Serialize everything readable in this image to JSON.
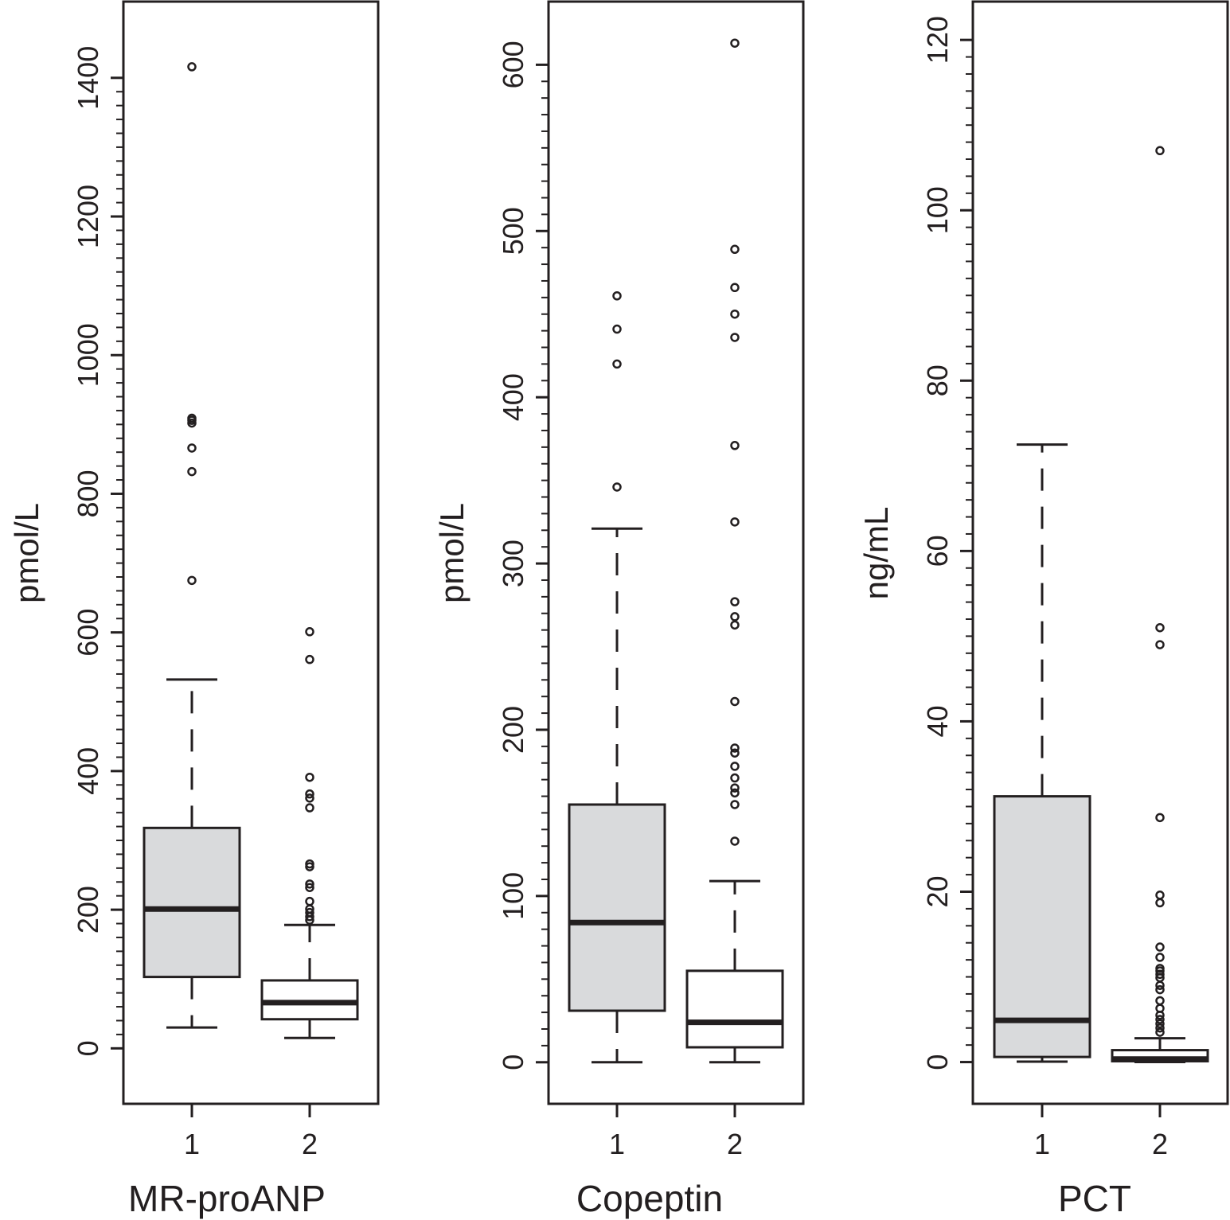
{
  "colors": {
    "ink": "#231f20",
    "box_fill_group1": "#d9dadc",
    "box_fill_group2": "#ffffff",
    "background": "#ffffff"
  },
  "chart_data": [
    {
      "type": "boxplot",
      "title": "MR-proANP",
      "ylabel": "pmol/L",
      "ylim": [
        -80,
        1510
      ],
      "yticks": [
        0,
        200,
        400,
        600,
        800,
        1000,
        1200,
        1400
      ],
      "ytick_labels": [
        "0",
        "200",
        "400",
        "600",
        "800",
        "1000",
        "1200",
        "1400"
      ],
      "minor_tick_step": 20,
      "categories": [
        "1",
        "2"
      ],
      "boxes": [
        {
          "category": "1",
          "fill": "gray",
          "whisker_low": 30,
          "q1": 103,
          "median": 201,
          "q3": 318,
          "whisker_high": 532,
          "outliers": [
            675,
            832,
            866,
            902,
            906,
            909,
            1416
          ]
        },
        {
          "category": "2",
          "fill": "white",
          "whisker_low": 15,
          "q1": 42,
          "median": 66,
          "q3": 98,
          "whisker_high": 178,
          "outliers": [
            185,
            190,
            196,
            201,
            212,
            232,
            237,
            262,
            266,
            347,
            361,
            367,
            391,
            561,
            601
          ]
        }
      ]
    },
    {
      "type": "boxplot",
      "title": "Copeptin",
      "ylabel": "pmol/L",
      "ylim": [
        -25,
        638
      ],
      "yticks": [
        0,
        100,
        200,
        300,
        400,
        500,
        600
      ],
      "ytick_labels": [
        "0",
        "100",
        "200",
        "300",
        "400",
        "500",
        "600"
      ],
      "minor_tick_step": 10,
      "categories": [
        "1",
        "2"
      ],
      "boxes": [
        {
          "category": "1",
          "fill": "gray",
          "whisker_low": 0,
          "q1": 31,
          "median": 84,
          "q3": 155,
          "whisker_high": 321,
          "outliers": [
            346,
            420,
            441,
            461
          ]
        },
        {
          "category": "2",
          "fill": "white",
          "whisker_low": 0,
          "q1": 9,
          "median": 24,
          "q3": 55,
          "whisker_high": 109,
          "outliers": [
            133,
            155,
            162,
            165,
            171,
            178,
            186,
            189,
            217,
            263,
            268,
            277,
            325,
            371,
            436,
            450,
            466,
            489,
            613
          ]
        }
      ]
    },
    {
      "type": "boxplot",
      "title": "PCT",
      "ylabel": "ng/mL",
      "ylim": [
        -4.9,
        124.5
      ],
      "yticks": [
        0,
        20,
        40,
        60,
        80,
        100,
        120
      ],
      "ytick_labels": [
        "0",
        "20",
        "40",
        "60",
        "80",
        "100",
        "120"
      ],
      "minor_tick_step": 2,
      "categories": [
        "1",
        "2"
      ],
      "boxes": [
        {
          "category": "1",
          "fill": "gray",
          "whisker_low": 0.05,
          "q1": 0.6,
          "median": 4.9,
          "q3": 31.2,
          "whisker_high": 72.5,
          "outliers": []
        },
        {
          "category": "2",
          "fill": "white",
          "whisker_low": 0.0,
          "q1": 0.1,
          "median": 0.35,
          "q3": 1.4,
          "whisker_high": 2.8,
          "outliers": [
            3.5,
            4.0,
            4.5,
            5.0,
            5.5,
            6.3,
            7.2,
            8.5,
            9.0,
            9.9,
            10.3,
            10.7,
            11.0,
            12.3,
            13.5,
            18.7,
            19.6,
            28.7,
            49.0,
            51.0,
            107.0
          ]
        }
      ]
    }
  ]
}
